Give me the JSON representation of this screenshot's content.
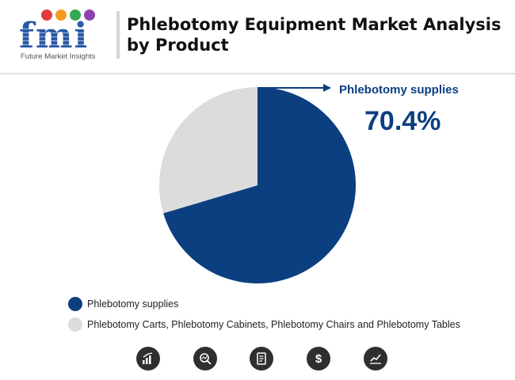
{
  "brand": {
    "name": "fmi",
    "tagline": "Future Market Insights",
    "dot_colors": [
      "#e23b3b",
      "#f29b1d",
      "#36a852",
      "#8e44ad"
    ]
  },
  "title": "Phlebotomy Equipment Market Analysis by Product",
  "chart_data": {
    "type": "pie",
    "slices": [
      {
        "label": "Phlebotomy supplies",
        "value": 70.4,
        "color": "#0c3f80"
      },
      {
        "label": "Phlebotomy Carts, Phlebotomy Cabinets, Phlebotomy Chairs and Phlebotomy Tables",
        "value": 29.6,
        "color": "#dcdcdc"
      }
    ],
    "callout": {
      "label": "Phlebotomy supplies",
      "value": "70.4%"
    },
    "legend_position": "bottom-left"
  },
  "footer_icons": [
    "bar-growth-icon",
    "magnifier-chart-icon",
    "document-icon",
    "dollar-icon",
    "line-trend-icon"
  ]
}
